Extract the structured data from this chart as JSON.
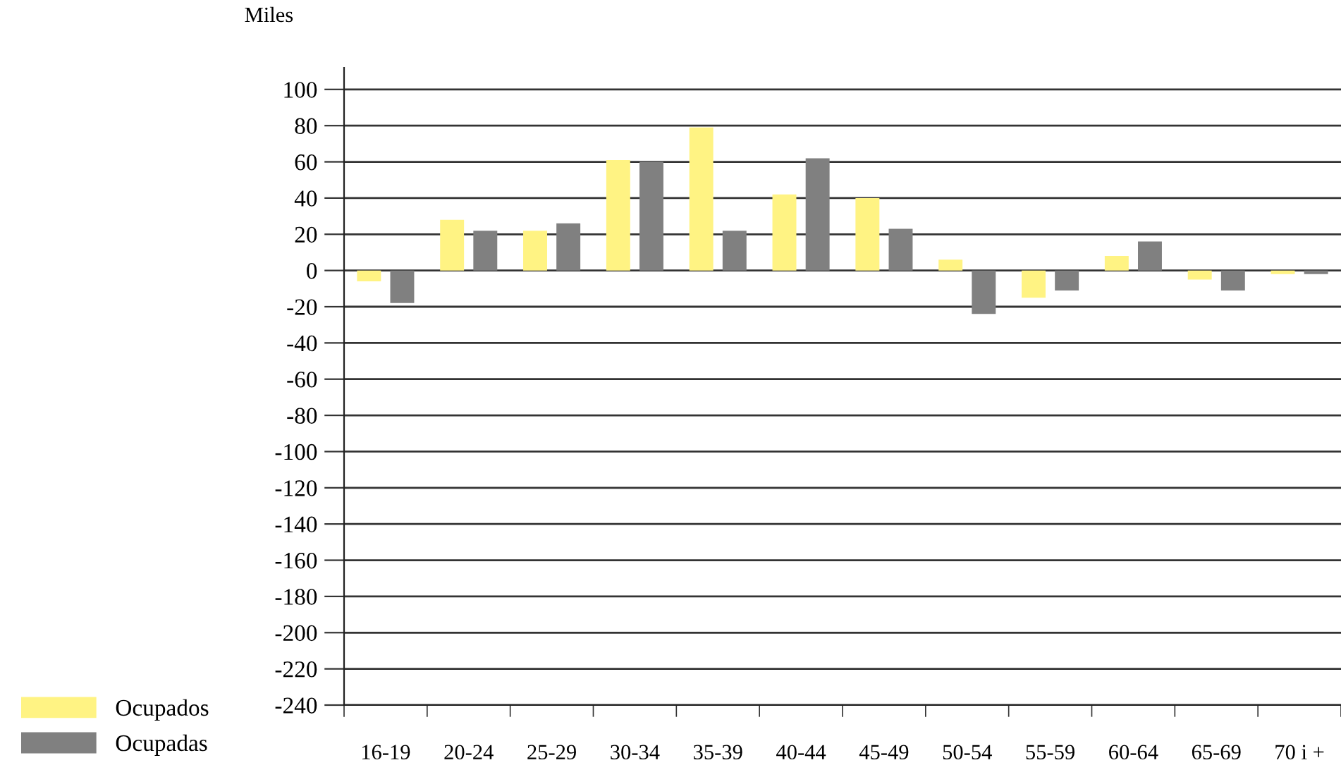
{
  "chart_data": {
    "type": "bar",
    "ylabel": "Miles",
    "categories": [
      "16-19",
      "20-24",
      "25-29",
      "30-34",
      "35-39",
      "40-44",
      "45-49",
      "50-54",
      "55-59",
      "60-64",
      "65-69",
      "70 i +"
    ],
    "series": [
      {
        "name": "Ocupados",
        "color": "#fff383",
        "values": [
          -6,
          28,
          22,
          61,
          79,
          42,
          40,
          6,
          -15,
          8,
          -5,
          -2
        ]
      },
      {
        "name": "Ocupadas",
        "color": "#808080",
        "values": [
          -18,
          22,
          26,
          60,
          22,
          62,
          23,
          -24,
          -11,
          16,
          -11,
          -2
        ]
      }
    ],
    "ylim": [
      -240,
      112
    ],
    "yticks": [
      -240,
      -220,
      -200,
      -180,
      -160,
      -140,
      -120,
      -100,
      -80,
      -60,
      -40,
      -20,
      0,
      20,
      40,
      60,
      80,
      100
    ],
    "grid": "y",
    "legend": "bottom left"
  }
}
